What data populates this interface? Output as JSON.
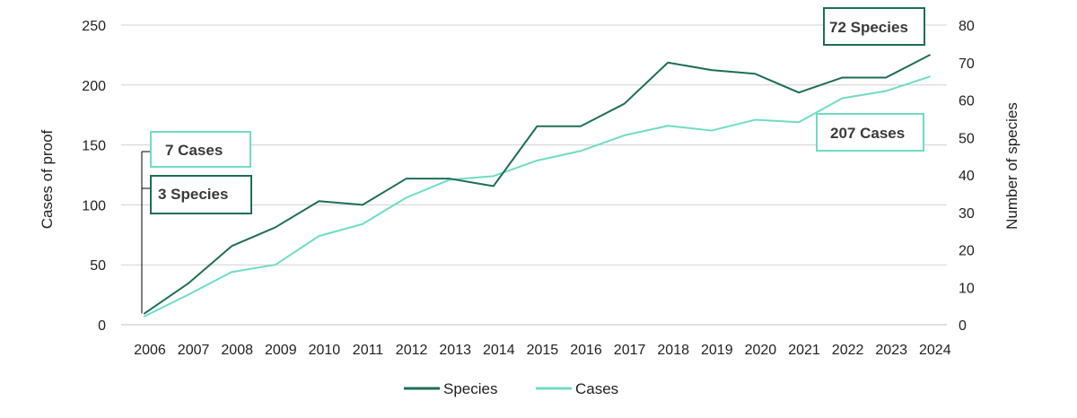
{
  "chart_data": {
    "type": "line",
    "x": [
      "2006",
      "2007",
      "2008",
      "2009",
      "2010",
      "2011",
      "2012",
      "2013",
      "2014",
      "2015",
      "2016",
      "2017",
      "2018",
      "2019",
      "2020",
      "2021",
      "2022",
      "2023",
      "2024"
    ],
    "series": [
      {
        "name": "Species",
        "axis": "right",
        "color": "#1e6e55",
        "values": [
          3,
          11,
          21,
          26,
          33,
          32,
          39,
          39,
          37,
          53,
          53,
          59,
          70,
          68,
          67,
          62,
          66,
          66,
          72
        ]
      },
      {
        "name": "Cases",
        "axis": "left",
        "color": "#6fdcc4",
        "values": [
          7,
          25,
          44,
          50,
          74,
          84,
          106,
          121,
          124,
          137,
          145,
          158,
          166,
          162,
          171,
          169,
          189,
          195,
          207
        ]
      }
    ],
    "yleft": {
      "label": "Cases of  proof",
      "ticks": [
        "0",
        "50",
        "100",
        "150",
        "200",
        "250"
      ],
      "ylim": [
        0,
        250
      ]
    },
    "yright": {
      "label": "Number of species",
      "ticks": [
        "0",
        "10",
        "20",
        "30",
        "40",
        "50",
        "60",
        "70",
        "80"
      ],
      "ylim": [
        0,
        80
      ]
    },
    "grid": true,
    "legend_position": "bottom",
    "annotations": [
      {
        "text": "7 Cases",
        "series": "Cases"
      },
      {
        "text": "3 Species",
        "series": "Species"
      },
      {
        "text": "72 Species",
        "series": "Species"
      },
      {
        "text": "207 Cases",
        "series": "Cases"
      }
    ]
  }
}
